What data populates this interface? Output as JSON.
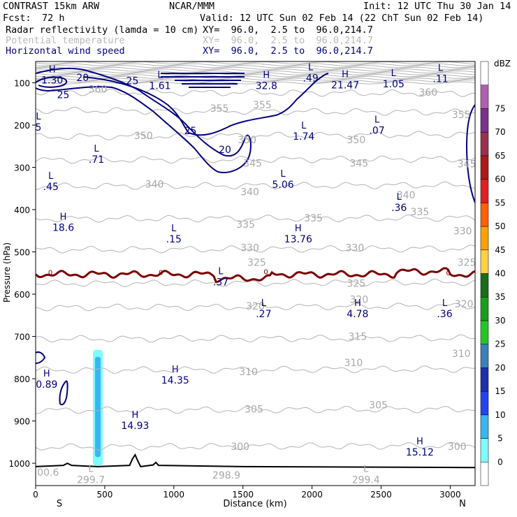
{
  "header": {
    "model": "CONTRAST 15km ARW",
    "center": "NCAR/MMM",
    "init": "Init: 12 UTC Thu 30 Jan 14",
    "fcst_label": "Fcst:",
    "fcst_value": "72 h",
    "valid": "Valid: 12 UTC Sun 02 Feb 14 (22 ChT Sun 02 Feb 14)"
  },
  "fields": [
    {
      "name": "Radar reflectivity (lamda = 10 cm)",
      "xy": "XY=  96.0,  2.5 to  96.0,214.7",
      "color": "#000000"
    },
    {
      "name": "Potential temperature",
      "xy": "XY=  96.0,  2.5 to  96.0,214.7",
      "color": "#b8b8b8"
    },
    {
      "name": "Horizontal wind speed",
      "xy": "XY=  96.0,  2.5 to  96.0,214.7",
      "color": "#000080"
    }
  ],
  "chart_data": {
    "type": "cross-section",
    "xlabel": "Distance (km)",
    "ylabel": "Pressure (hPa)",
    "xlim": [
      0,
      3180
    ],
    "ylim": [
      1045,
      75
    ],
    "x_ticks": [
      0,
      500,
      1000,
      1500,
      2000,
      2500,
      3000
    ],
    "y_ticks": [
      100,
      200,
      300,
      400,
      500,
      600,
      700,
      800,
      900,
      1000
    ],
    "x_end_labels": {
      "left": "S",
      "right": "N"
    },
    "colorbar": {
      "unit": "dBZ",
      "levels": [
        0,
        5,
        10,
        15,
        20,
        25,
        30,
        35,
        40,
        45,
        50,
        55,
        60,
        65,
        70,
        75
      ],
      "colors": [
        "#ffffff",
        "#7dfefe",
        "#38b6f0",
        "#2244ee",
        "#1c30b0",
        "#3a7fbf",
        "#22c822",
        "#16a016",
        "#1a6e1a",
        "#ffd040",
        "#ffa000",
        "#ff6000",
        "#e02020",
        "#b01818",
        "#9a3050",
        "#7c3090",
        "#b060b0",
        "#ffffff"
      ]
    },
    "theta_contours": [
      {
        "value": 300,
        "p_left": 962,
        "p_right": 958
      },
      {
        "value": 305,
        "p_left": 875,
        "p_right": 872
      },
      {
        "value": 310,
        "p_left": 780,
        "p_right": 777
      },
      {
        "value": 315,
        "p_left": 706,
        "p_right": 704
      },
      {
        "value": 320,
        "p_left": 632,
        "p_right": 628
      },
      {
        "value": 325,
        "p_left": 575,
        "p_right": 572
      },
      {
        "value": 330,
        "p_left": 495,
        "p_right": 492
      },
      {
        "value": 335,
        "p_left": 422,
        "p_right": 420
      },
      {
        "value": 340,
        "p_left": 345,
        "p_right": 342
      },
      {
        "value": 345,
        "p_left": 283,
        "p_right": 280
      },
      {
        "value": 350,
        "p_left": 228,
        "p_right": 222
      },
      {
        "value": 355,
        "p_left": 165,
        "p_right": 170
      },
      {
        "value": 360,
        "p_left": 122,
        "p_right": 125
      }
    ],
    "theta_labels": [
      {
        "x": 1480,
        "p": 960,
        "text": "300"
      },
      {
        "x": 3050,
        "p": 960,
        "text": "300"
      },
      {
        "x": 1580,
        "p": 872,
        "text": "305"
      },
      {
        "x": 2480,
        "p": 862,
        "text": "305"
      },
      {
        "x": 1540,
        "p": 783,
        "text": "310"
      },
      {
        "x": 2300,
        "p": 762,
        "text": "310"
      },
      {
        "x": 3080,
        "p": 740,
        "text": "310"
      },
      {
        "x": 2330,
        "p": 700,
        "text": "315"
      },
      {
        "x": 1590,
        "p": 628,
        "text": "320"
      },
      {
        "x": 2340,
        "p": 612,
        "text": "320"
      },
      {
        "x": 3100,
        "p": 623,
        "text": "320"
      },
      {
        "x": 1600,
        "p": 525,
        "text": "325"
      },
      {
        "x": 2320,
        "p": 574,
        "text": "325"
      },
      {
        "x": 3120,
        "p": 525,
        "text": "325"
      },
      {
        "x": 1550,
        "p": 490,
        "text": "330"
      },
      {
        "x": 2310,
        "p": 490,
        "text": "330"
      },
      {
        "x": 3090,
        "p": 450,
        "text": "330"
      },
      {
        "x": 1520,
        "p": 435,
        "text": "335"
      },
      {
        "x": 2010,
        "p": 420,
        "text": "335"
      },
      {
        "x": 2780,
        "p": 405,
        "text": "335"
      },
      {
        "x": 860,
        "p": 340,
        "text": "340"
      },
      {
        "x": 1550,
        "p": 358,
        "text": "340"
      },
      {
        "x": 2680,
        "p": 365,
        "text": "340"
      },
      {
        "x": 1570,
        "p": 290,
        "text": "345"
      },
      {
        "x": 2340,
        "p": 290,
        "text": "345"
      },
      {
        "x": 3120,
        "p": 292,
        "text": "345"
      },
      {
        "x": 780,
        "p": 225,
        "text": "350"
      },
      {
        "x": 1530,
        "p": 235,
        "text": "350"
      },
      {
        "x": 2320,
        "p": 235,
        "text": "350"
      },
      {
        "x": 1330,
        "p": 160,
        "text": "355"
      },
      {
        "x": 1640,
        "p": 152,
        "text": "355"
      },
      {
        "x": 3080,
        "p": 175,
        "text": "355"
      },
      {
        "x": 450,
        "p": 115,
        "text": "360"
      },
      {
        "x": 2840,
        "p": 122,
        "text": "360"
      }
    ],
    "wind_contours": [
      20,
      25
    ],
    "wind_labels": [
      {
        "x": 340,
        "p": 88,
        "text": "20"
      },
      {
        "x": 700,
        "p": 95,
        "text": "25"
      },
      {
        "x": 200,
        "p": 128,
        "text": "25"
      },
      {
        "x": 1120,
        "p": 213,
        "text": "25"
      },
      {
        "x": 1370,
        "p": 258,
        "text": "20"
      }
    ],
    "freezing_level": {
      "value": 0,
      "p_mean": 553
    },
    "extrema": [
      {
        "x": 120,
        "p": 85,
        "kind": "H",
        "value": "1.30"
      },
      {
        "x": 900,
        "p": 98,
        "kind": "L",
        "value": "1.61"
      },
      {
        "x": 1670,
        "p": 98,
        "kind": "H",
        "value": "32.8"
      },
      {
        "x": 1990,
        "p": 80,
        "kind": "L",
        "value": ".49"
      },
      {
        "x": 2240,
        "p": 97,
        "kind": "H",
        "value": "21.47"
      },
      {
        "x": 2590,
        "p": 94,
        "kind": "L",
        "value": "1.05"
      },
      {
        "x": 2930,
        "p": 82,
        "kind": "L",
        "value": ".11"
      },
      {
        "x": 20,
        "p": 197,
        "kind": "L",
        "value": "5"
      },
      {
        "x": 2470,
        "p": 204,
        "kind": "L",
        "value": ".07"
      },
      {
        "x": 1940,
        "p": 218,
        "kind": "L",
        "value": "1.74"
      },
      {
        "x": 440,
        "p": 273,
        "kind": "L",
        "value": ".71"
      },
      {
        "x": 110,
        "p": 337,
        "kind": "L",
        "value": ".45"
      },
      {
        "x": 1790,
        "p": 332,
        "kind": "L",
        "value": "5.06"
      },
      {
        "x": 2630,
        "p": 387,
        "kind": "L",
        "value": ".36"
      },
      {
        "x": 200,
        "p": 434,
        "kind": "H",
        "value": "18.6"
      },
      {
        "x": 1000,
        "p": 461,
        "kind": "L",
        "value": ".15"
      },
      {
        "x": 1900,
        "p": 461,
        "kind": "H",
        "value": "13.76"
      },
      {
        "x": 1340,
        "p": 563,
        "kind": "L",
        "value": ".37"
      },
      {
        "x": 1650,
        "p": 638,
        "kind": "L",
        "value": ".27"
      },
      {
        "x": 2330,
        "p": 638,
        "kind": "H",
        "value": "4.78"
      },
      {
        "x": 2960,
        "p": 638,
        "kind": "L",
        "value": ".36"
      },
      {
        "x": 80,
        "p": 805,
        "kind": "H",
        "value": "0.89"
      },
      {
        "x": 1010,
        "p": 795,
        "kind": "H",
        "value": "14.35"
      },
      {
        "x": 720,
        "p": 902,
        "kind": "H",
        "value": "14.93"
      },
      {
        "x": 2780,
        "p": 965,
        "kind": "H",
        "value": "15.12"
      },
      {
        "x": 90,
        "p": 1013,
        "kind": "",
        "value": "00.6"
      },
      {
        "x": 400,
        "p": 1030,
        "kind": "L",
        "value": "299.7"
      },
      {
        "x": 1380,
        "p": 1020,
        "kind": "",
        "value": "298.9"
      },
      {
        "x": 2390,
        "p": 1030,
        "kind": "L",
        "value": "299.4"
      }
    ],
    "reflectivity_band": {
      "x_center": 450,
      "p_top": 735,
      "p_bottom": 1005,
      "dbz_max": 15
    },
    "terrain": [
      [
        0,
        1008
      ],
      [
        200,
        1005
      ],
      [
        230,
        1000
      ],
      [
        260,
        1005
      ],
      [
        450,
        1008
      ],
      [
        680,
        1005
      ],
      [
        700,
        990
      ],
      [
        720,
        980
      ],
      [
        740,
        995
      ],
      [
        760,
        1008
      ],
      [
        850,
        1004
      ],
      [
        870,
        998
      ],
      [
        890,
        1005
      ],
      [
        1500,
        1008
      ],
      [
        3180,
        1010
      ]
    ]
  }
}
